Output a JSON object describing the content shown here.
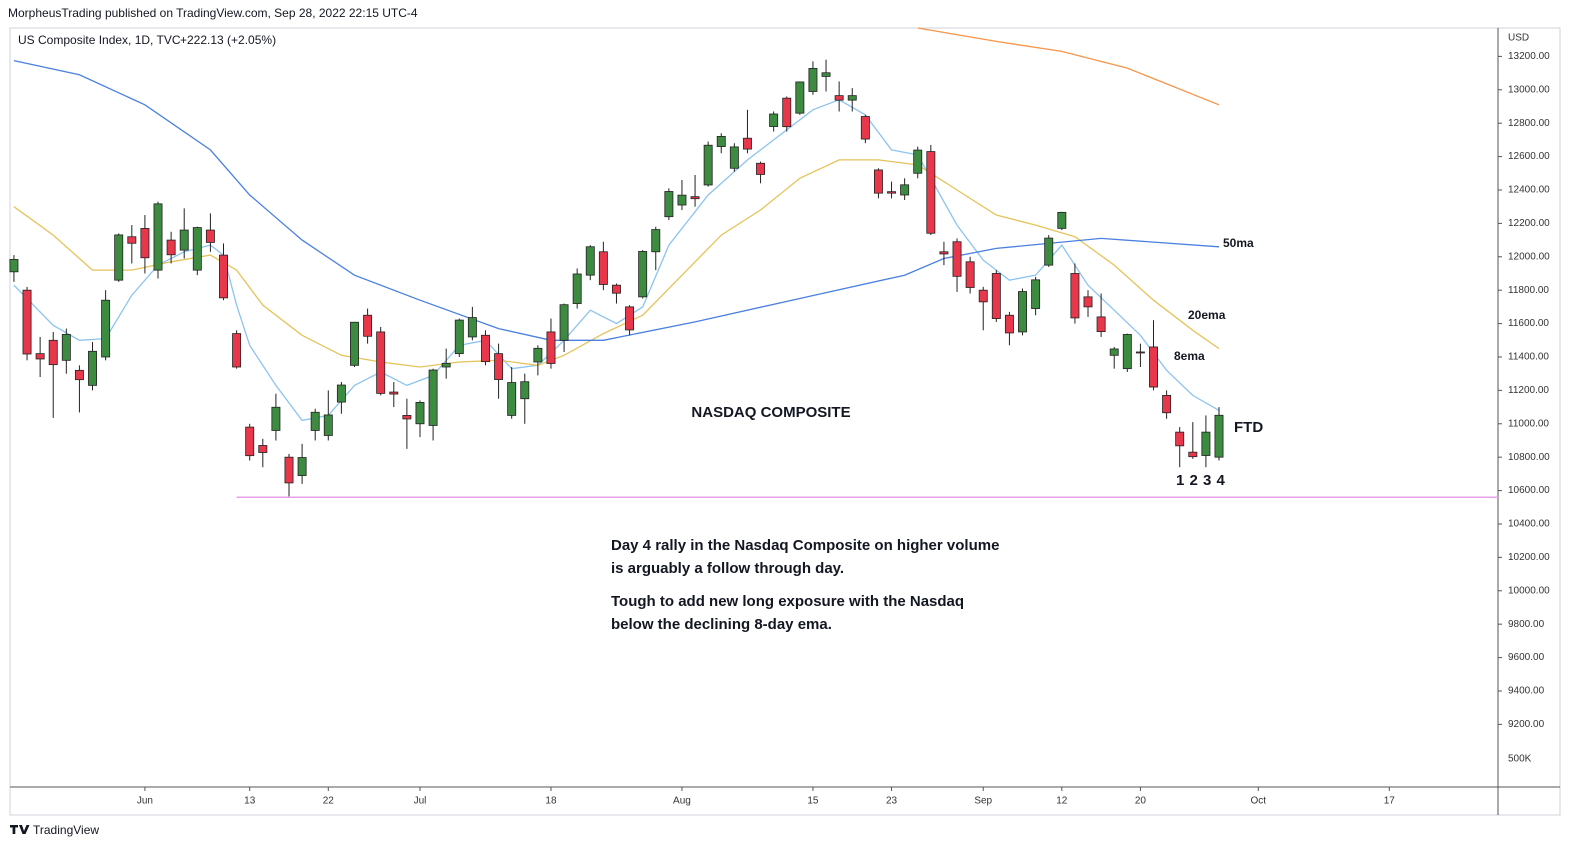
{
  "header": {
    "published": "MorpheusTrading published on TradingView.com, Sep 28, 2022 22:15 UTC-4",
    "brand": "TradingView"
  },
  "chart_data": {
    "type": "candlestick",
    "title": "US Composite Index, 1D, TVC",
    "change": "+222.13 (+2.05%)",
    "currency": "USD",
    "volume_label": "500K",
    "up_color": "#3d8b40",
    "down_color": "#e8374a",
    "open": [
      11910,
      11800,
      11420,
      11500,
      11380,
      11320,
      11230,
      11400,
      11860,
      12120,
      12170,
      11920,
      12100,
      12040,
      11920,
      12160,
      12010,
      11540,
      10980,
      10870,
      10960,
      10800,
      10690,
      10960,
      10930,
      11130,
      11350,
      11650,
      11550,
      11190,
      11050,
      11000,
      10990,
      11340,
      11420,
      11520,
      11530,
      11420,
      11050,
      11150,
      11370,
      11550,
      11500,
      11720,
      11890,
      12030,
      11830,
      11700,
      11760,
      12030,
      12240,
      12310,
      12360,
      12430,
      12660,
      12530,
      12710,
      12560,
      12780,
      12950,
      12860,
      12990,
      13080,
      12965,
      12938,
      12840,
      12520,
      12390,
      12370,
      12500,
      12630,
      12030,
      12090,
      11970,
      11800,
      11900,
      11650,
      11550,
      11690,
      11950,
      12170,
      11900,
      11760,
      11640,
      11410,
      11330,
      11430,
      11460,
      11170,
      10950,
      10830,
      10810,
      10800
    ],
    "high": [
      12010,
      11820,
      11520,
      11550,
      11570,
      11350,
      11490,
      11800,
      12140,
      12190,
      12250,
      12330,
      12150,
      12290,
      12180,
      12260,
      12080,
      11560,
      11000,
      10910,
      11180,
      10820,
      10880,
      11090,
      11200,
      11250,
      11610,
      11690,
      11580,
      11250,
      11150,
      11140,
      11330,
      11450,
      11630,
      11700,
      11560,
      11480,
      11340,
      11300,
      11470,
      11630,
      11720,
      11930,
      12070,
      12090,
      11840,
      11710,
      12040,
      12180,
      12410,
      12460,
      12490,
      12690,
      12740,
      12680,
      12880,
      12570,
      12870,
      12960,
      13050,
      13170,
      13180,
      13050,
      13010,
      12850,
      12530,
      12450,
      12470,
      12660,
      12670,
      12090,
      12110,
      12000,
      11820,
      11920,
      11670,
      11810,
      11880,
      12130,
      12270,
      11960,
      11800,
      11780,
      11460,
      11540,
      11480,
      11620,
      11200,
      10980,
      11010,
      11050,
      11100
    ],
    "low": [
      11850,
      11380,
      11280,
      11035,
      11300,
      11068,
      11200,
      11380,
      11850,
      11960,
      11900,
      11870,
      11960,
      11990,
      11890,
      12030,
      11740,
      11330,
      10780,
      10740,
      10900,
      10565,
      10640,
      10900,
      10900,
      11060,
      11340,
      11480,
      11170,
      11100,
      10850,
      10920,
      10900,
      11270,
      11400,
      11500,
      11350,
      11150,
      11030,
      11000,
      11290,
      11330,
      11430,
      11690,
      11860,
      11800,
      11720,
      11530,
      11750,
      11920,
      12220,
      12280,
      12300,
      12420,
      12620,
      12510,
      12620,
      12440,
      12750,
      12750,
      12850,
      12970,
      12990,
      12870,
      12870,
      12680,
      12350,
      12350,
      12340,
      12470,
      12130,
      11950,
      11790,
      11780,
      11560,
      11610,
      11470,
      11530,
      11650,
      11940,
      12160,
      11600,
      11640,
      11520,
      11330,
      11310,
      11340,
      11200,
      11030,
      10740,
      10790,
      10740,
      10780
    ],
    "close": [
      11984,
      11418,
      11388,
      11354,
      11535,
      11264,
      11434,
      11740,
      12131,
      12081,
      11994,
      12317,
      12012,
      12160,
      12175,
      12086,
      11754,
      11340,
      10809,
      10828,
      11099,
      10646,
      10798,
      11069,
      11053,
      11232,
      11608,
      11524,
      11182,
      11178,
      11029,
      11128,
      11322,
      11362,
      11621,
      11636,
      11372,
      11265,
      11247,
      11252,
      11452,
      11361,
      11713,
      11897,
      12060,
      11834,
      11782,
      11562,
      12032,
      12163,
      12391,
      12369,
      12348,
      12668,
      12721,
      12658,
      12645,
      12493,
      12855,
      12779,
      13047,
      13128,
      13102,
      12938,
      12965,
      12705,
      12381,
      12381,
      12431,
      12639,
      12141,
      12017,
      11883,
      11816,
      11730,
      11630,
      11544,
      11792,
      11862,
      12112,
      12266,
      11634,
      11700,
      11552,
      11448,
      11535,
      11425,
      11220,
      11066,
      10868,
      10803,
      10950,
      11051
    ],
    "series": [
      {
        "name": "8ema",
        "color": "#8cc4ef",
        "x": [
          0,
          3,
          5,
          7,
          9,
          11,
          13,
          15,
          16,
          17,
          18,
          20,
          22,
          24,
          26,
          28,
          30,
          32,
          34,
          36,
          38,
          40,
          42,
          44,
          46,
          48,
          50,
          53,
          56,
          59,
          61,
          63,
          65,
          67,
          69,
          72,
          74,
          76,
          78,
          80,
          82,
          84,
          86,
          88,
          90,
          92
        ],
        "values": [
          11830,
          11590,
          11500,
          11510,
          11770,
          11950,
          12030,
          12070,
          12010,
          11710,
          11470,
          11230,
          11020,
          11050,
          11230,
          11310,
          11230,
          11290,
          11470,
          11500,
          11330,
          11350,
          11500,
          11680,
          11600,
          11700,
          12070,
          12370,
          12580,
          12760,
          12880,
          12940,
          12850,
          12640,
          12610,
          12190,
          11980,
          11860,
          11890,
          12070,
          11830,
          11680,
          11530,
          11320,
          11170,
          11080
        ]
      },
      {
        "name": "20ema",
        "color": "#e5c35a",
        "x": [
          0,
          3,
          6,
          9,
          12,
          15,
          17,
          19,
          22,
          25,
          28,
          31,
          34,
          37,
          40,
          42,
          45,
          48,
          51,
          54,
          57,
          60,
          63,
          66,
          69,
          72,
          75,
          78,
          81,
          84,
          87,
          90,
          92
        ],
        "values": [
          12300,
          12130,
          11920,
          11920,
          11970,
          12010,
          11920,
          11710,
          11530,
          11410,
          11370,
          11340,
          11370,
          11380,
          11350,
          11410,
          11540,
          11650,
          11890,
          12130,
          12280,
          12470,
          12580,
          12580,
          12550,
          12400,
          12250,
          12190,
          12120,
          11950,
          11740,
          11560,
          11450
        ]
      },
      {
        "name": "50ma",
        "color": "#4a80e0",
        "x": [
          0,
          5,
          10,
          15,
          18,
          22,
          26,
          31,
          37,
          41,
          45,
          52,
          60,
          68,
          71,
          75,
          83,
          92
        ],
        "values": [
          13175,
          13090,
          12910,
          12640,
          12370,
          12100,
          11890,
          11740,
          11570,
          11500,
          11500,
          11610,
          11750,
          11890,
          11990,
          12050,
          12110,
          12060
        ]
      },
      {
        "color": "#f7954a",
        "x": [
          69,
          75,
          80,
          85,
          92
        ],
        "values": [
          13370,
          13290,
          13230,
          13130,
          12910
        ]
      }
    ],
    "support": {
      "value": 10560,
      "x_start": 17,
      "color": "#e8a0ea"
    },
    "annotations": [
      "NASDAQ COMPOSITE",
      "FTD",
      "1 2 3 4"
    ],
    "notes": [
      "Day 4 rally in the Nasdaq Composite on higher volume",
      "is arguably a follow through day.",
      "Tough to add new long exposure with the Nasdaq",
      "below the declining 8-day ema."
    ],
    "xlim": [
      -0.3,
      113.3
    ],
    "ylim": [
      8825,
      13370
    ],
    "xticks": [
      {
        "value": 10,
        "label": "Jun"
      },
      {
        "value": 18,
        "label": "13"
      },
      {
        "value": 24,
        "label": "22"
      },
      {
        "value": 31,
        "label": "Jul"
      },
      {
        "value": 41,
        "label": "18"
      },
      {
        "value": 51,
        "label": "Aug"
      },
      {
        "value": 61,
        "label": "15"
      },
      {
        "value": 67,
        "label": "23"
      },
      {
        "value": 74,
        "label": "Sep"
      },
      {
        "value": 80,
        "label": "12"
      },
      {
        "value": 86,
        "label": "20"
      },
      {
        "value": 95,
        "label": "Oct"
      },
      {
        "value": 105,
        "label": "17"
      }
    ],
    "yticks": [
      {
        "value": 9200,
        "label": "9200.00"
      },
      {
        "value": 9400,
        "label": "9400.00"
      },
      {
        "value": 9600,
        "label": "9600.00"
      },
      {
        "value": 9800,
        "label": "9800.00"
      },
      {
        "value": 10000,
        "label": "10000.00"
      },
      {
        "value": 10200,
        "label": "10200.00"
      },
      {
        "value": 10400,
        "label": "10400.00"
      },
      {
        "value": 10600,
        "label": "10600.00"
      },
      {
        "value": 10800,
        "label": "10800.00"
      },
      {
        "value": 11000,
        "label": "11000.00"
      },
      {
        "value": 11200,
        "label": "11200.00"
      },
      {
        "value": 11400,
        "label": "11400.00"
      },
      {
        "value": 11600,
        "label": "11600.00"
      },
      {
        "value": 11800,
        "label": "11800.00"
      },
      {
        "value": 12000,
        "label": "12000.00"
      },
      {
        "value": 12200,
        "label": "12200.00"
      },
      {
        "value": 12400,
        "label": "12400.00"
      },
      {
        "value": 12600,
        "label": "12600.00"
      },
      {
        "value": 12800,
        "label": "12800.00"
      },
      {
        "value": 13000,
        "label": "13000.00"
      },
      {
        "value": 13200,
        "label": "13200.00"
      }
    ]
  }
}
